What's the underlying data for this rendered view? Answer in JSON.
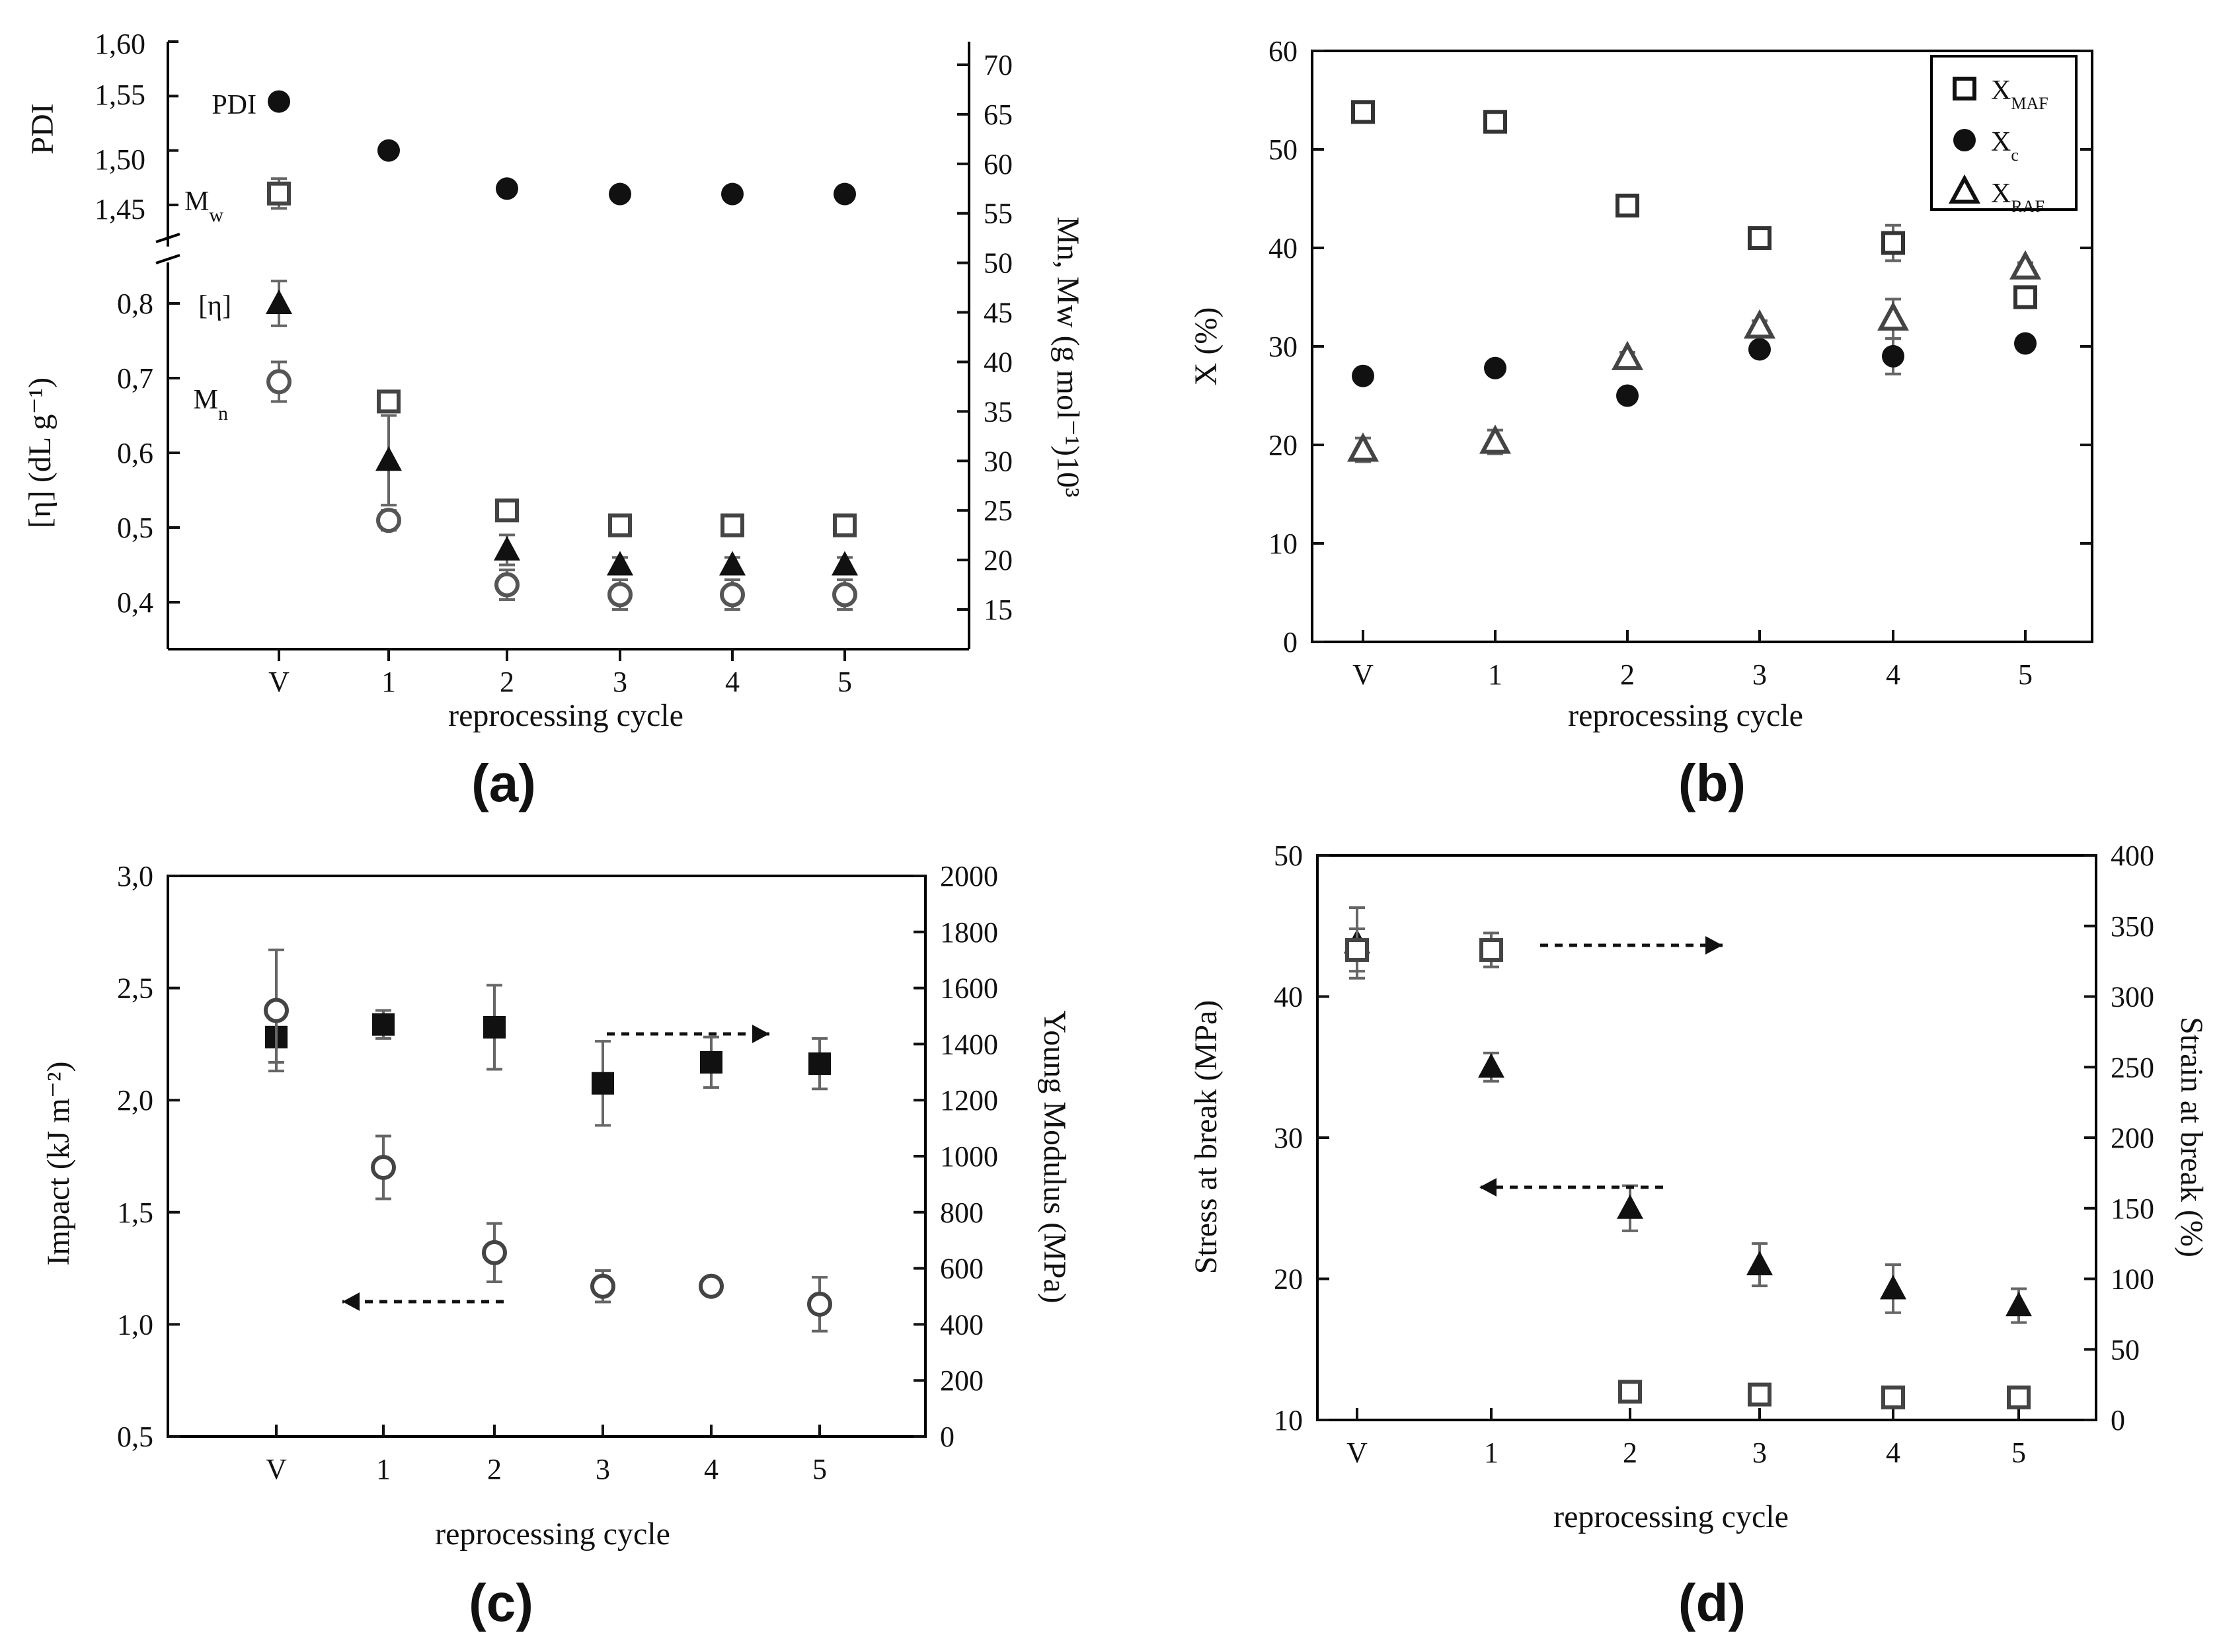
{
  "figure_title": "",
  "chart_data": [
    {
      "id": "a",
      "panel_label": "(a)",
      "type": "scatter",
      "categories": [
        "V",
        "1",
        "2",
        "3",
        "4",
        "5"
      ],
      "xlabel": "reprocessing cycle",
      "y_top_label": "PDI",
      "y_top_ticks": [
        "1,45",
        "1,50",
        "1,55",
        "1,60"
      ],
      "y_top_range": [
        1.43,
        1.6
      ],
      "y_bottom_label": "[η] (dL g⁻¹)",
      "y_bottom_ticks": [
        "0,4",
        "0,5",
        "0,6",
        "0,7",
        "0,8"
      ],
      "y_bottom_range": [
        0.36,
        0.86
      ],
      "y2_label": "Mn, Mw (g mol⁻¹)10³",
      "y2_ticks": [
        "15",
        "20",
        "25",
        "30",
        "35",
        "40",
        "45",
        "50",
        "55",
        "60",
        "65",
        "70"
      ],
      "y2_range": [
        12,
        72
      ],
      "series": [
        {
          "name": "PDI",
          "axis": "top",
          "marker": "filled-circle",
          "values": [
            1.545,
            1.5,
            1.465,
            1.46,
            1.46,
            1.46
          ],
          "errors": [
            0,
            0,
            0,
            0,
            0,
            0
          ]
        },
        {
          "name": "[η]",
          "axis": "left-bottom",
          "marker": "filled-triangle",
          "values": [
            0.8,
            0.59,
            0.47,
            0.45,
            0.45,
            0.45
          ],
          "errors": [
            0.03,
            0.06,
            0.02,
            0.01,
            0.01,
            0.01
          ]
        },
        {
          "name": "Mw",
          "axis": "right",
          "marker": "open-square",
          "values": [
            57,
            36,
            25,
            23.5,
            23.5,
            23.5
          ],
          "errors": [
            1.5,
            1,
            0.8,
            0.8,
            0.8,
            0.8
          ]
        },
        {
          "name": "Mn",
          "axis": "right",
          "marker": "open-circle",
          "values": [
            38,
            24,
            17.5,
            16.5,
            16.5,
            16.5
          ],
          "errors": [
            2,
            1,
            1.5,
            1.5,
            1.5,
            1.5
          ]
        }
      ],
      "inline_labels": [
        {
          "text": "PDI",
          "series": "PDI"
        },
        {
          "text": "Mw",
          "series": "Mw"
        },
        {
          "text": "[η]",
          "series": "[η]"
        },
        {
          "text": "Mn",
          "series": "Mn"
        }
      ]
    },
    {
      "id": "b",
      "panel_label": "(b)",
      "type": "scatter",
      "categories": [
        "V",
        "1",
        "2",
        "3",
        "4",
        "5"
      ],
      "xlabel": "reprocessing cycle",
      "ylabel": "X (%)",
      "ylim": [
        0,
        60
      ],
      "y_ticks": [
        "0",
        "10",
        "20",
        "30",
        "40",
        "50",
        "60"
      ],
      "legend_position": "top-right",
      "series": [
        {
          "name": "XMAF",
          "legend_main": "X",
          "legend_sub": "MAF",
          "marker": "open-square",
          "values": [
            53.8,
            52.8,
            44.3,
            41,
            40.5,
            35
          ],
          "errors": [
            0.7,
            0.5,
            0.5,
            0.6,
            1.8,
            1
          ]
        },
        {
          "name": "Xc",
          "legend_main": "X",
          "legend_sub": "c",
          "marker": "filled-circle",
          "values": [
            27,
            27.8,
            25,
            29.7,
            29,
            30.3
          ],
          "errors": [
            0,
            0,
            0,
            0,
            1.8,
            0
          ]
        },
        {
          "name": "XRAF",
          "legend_main": "X",
          "legend_sub": "RAF",
          "marker": "open-triangle",
          "values": [
            19.5,
            20.3,
            28.8,
            32,
            32.8,
            38
          ],
          "errors": [
            1.2,
            1.2,
            0.6,
            0.6,
            2,
            0.5
          ]
        }
      ]
    },
    {
      "id": "c",
      "panel_label": "(c)",
      "type": "scatter",
      "categories": [
        "V",
        "1",
        "2",
        "3",
        "4",
        "5"
      ],
      "xlabel": "reprocessing cycle",
      "ylabel": "Impact (kJ m⁻²)",
      "ylim": [
        0.5,
        3.0
      ],
      "y_ticks": [
        "0,5",
        "1,0",
        "1,5",
        "2,0",
        "2,5",
        "3,0"
      ],
      "y2_label": "Young Modulus (MPa)",
      "y2_range": [
        0,
        2000
      ],
      "y2_ticks": [
        "0",
        "200",
        "400",
        "600",
        "800",
        "1000",
        "1200",
        "1400",
        "1600",
        "1800",
        "2000"
      ],
      "series": [
        {
          "name": "Impact",
          "axis": "left",
          "marker": "open-circle",
          "values": [
            2.4,
            1.7,
            1.32,
            1.17,
            1.17,
            1.09
          ],
          "errors": [
            0.27,
            0.14,
            0.13,
            0.07,
            0.03,
            0.12
          ]
        },
        {
          "name": "Young Modulus",
          "axis": "right",
          "marker": "filled-square",
          "values": [
            1425,
            1470,
            1460,
            1260,
            1335,
            1330
          ],
          "errors": [
            90,
            50,
            150,
            150,
            90,
            90
          ]
        }
      ],
      "arrows": [
        {
          "series": "Impact",
          "direction": "left"
        },
        {
          "series": "Young Modulus",
          "direction": "right"
        }
      ]
    },
    {
      "id": "d",
      "panel_label": "(d)",
      "type": "scatter",
      "categories": [
        "V",
        "1",
        "2",
        "3",
        "4",
        "5"
      ],
      "xlabel": "reprocessing cycle",
      "ylabel": "Stress at break (MPa)",
      "ylim": [
        10,
        50
      ],
      "y_ticks": [
        "10",
        "20",
        "30",
        "40",
        "50"
      ],
      "y2_label": "Strain at break (%)",
      "y2_range": [
        0,
        400
      ],
      "y2_ticks": [
        "0",
        "50",
        "100",
        "150",
        "200",
        "250",
        "300",
        "350",
        "400"
      ],
      "series": [
        {
          "name": "Stress at break",
          "axis": "left",
          "marker": "filled-triangle",
          "values": [
            43.8,
            35,
            25,
            21,
            19.3,
            18.1
          ],
          "errors": [
            2.5,
            1,
            1.6,
            1.5,
            1.7,
            1.2
          ]
        },
        {
          "name": "Strain at break",
          "axis": "right",
          "marker": "open-square",
          "values": [
            333,
            333,
            20,
            18,
            16,
            16
          ],
          "errors": [
            15,
            12,
            4,
            4,
            4,
            4
          ]
        }
      ],
      "arrows": [
        {
          "series": "Strain at break",
          "direction": "right"
        },
        {
          "series": "Stress at break",
          "direction": "left"
        }
      ]
    }
  ]
}
